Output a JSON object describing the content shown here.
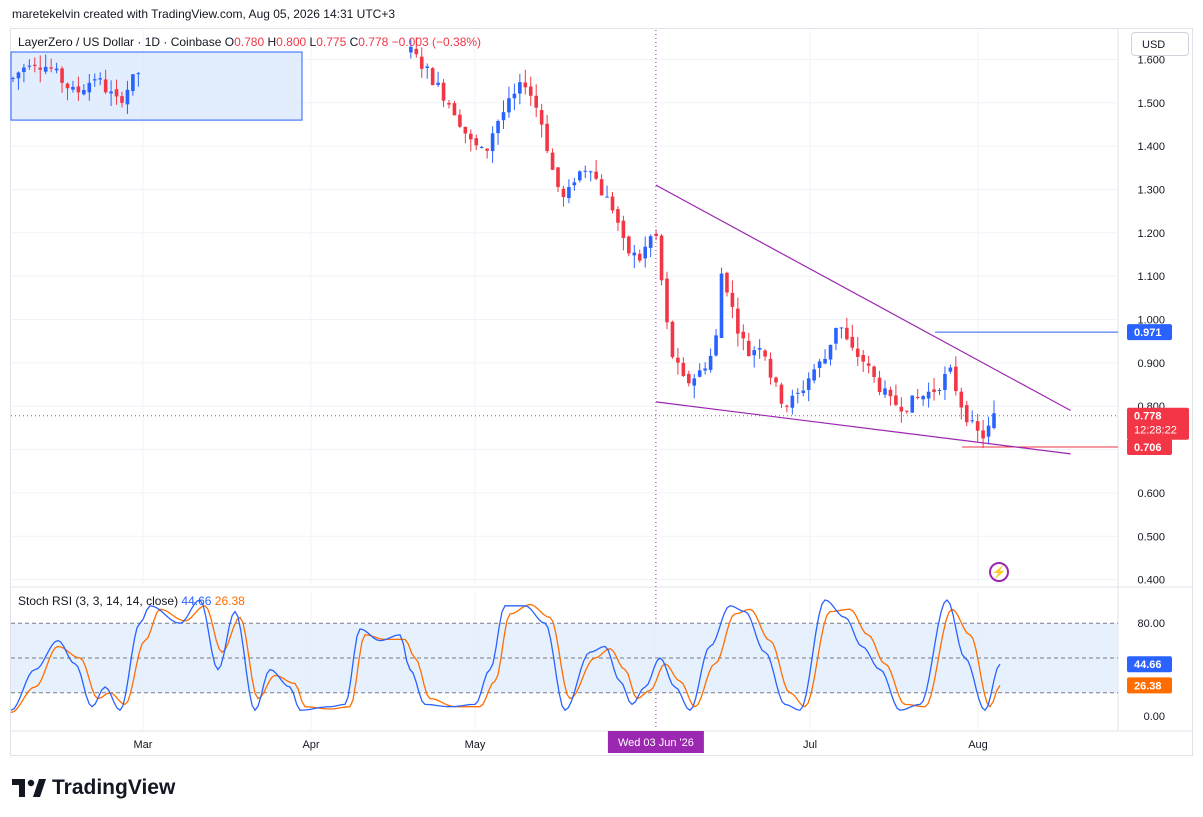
{
  "header": {
    "credit": "maretekelvin created with TradingView.com, Aug 05, 2026 14:31 UTC+3",
    "currency": "USD"
  },
  "legend": {
    "symbol": "LayerZero / US Dollar · 1D · Coinbase",
    "o_label": "O",
    "o": "0.780",
    "h_label": "H",
    "h": "0.800",
    "l_label": "L",
    "l": "0.775",
    "c_label": "C",
    "c": "0.778",
    "change": "−0.003 (−0.38%)"
  },
  "rsi_legend": {
    "name": "Stoch RSI (3, 3, 14, 14, close)",
    "k": "44.66",
    "d": "26.38"
  },
  "price_badges": {
    "level_high": "0.971",
    "current": "0.778",
    "countdown": "12:28:22",
    "level_low": "0.706"
  },
  "crosshair_label": "Wed 03 Jun '26",
  "brand": "TradingView",
  "colors": {
    "up": "#2962ff",
    "down": "#f23645",
    "trendline": "#9c27b0",
    "k_line": "#2962ff",
    "d_line": "#ff6d00",
    "band_fill": "#e3effd",
    "box_fill": "#dbe8fd",
    "box_border": "#2962ff"
  },
  "chart_data": [
    {
      "type": "candlestick",
      "title": "LayerZero / US Dollar · 1D · Coinbase",
      "xlabel": "",
      "ylabel": "",
      "x_ticks": [
        "Mar",
        "Apr",
        "May",
        "Jul",
        "Aug"
      ],
      "y_ticks": [
        "0.400",
        "0.500",
        "0.600",
        "0.700",
        "0.800",
        "0.900",
        "1.000",
        "1.100",
        "1.200",
        "1.300",
        "1.400",
        "1.500",
        "1.600"
      ],
      "ylim": [
        0.38,
        1.65
      ],
      "grid": true,
      "horizontal_lines": [
        0.971,
        0.706
      ],
      "last_price": 0.778,
      "trendlines": [
        {
          "from": [
            "2026-06-03",
            1.31
          ],
          "to": [
            "2026-08-18",
            0.79
          ]
        },
        {
          "from": [
            "2026-06-03",
            0.81
          ],
          "to": [
            "2026-08-18",
            0.69
          ]
        }
      ],
      "range_box": {
        "x_from": "2026-02-19",
        "x_to": "2026-03-23",
        "y_from": 1.46,
        "y_to": 1.62
      },
      "crosshair_x": "2026-06-03",
      "candles_note": "Approximate daily OHLC values read from chart",
      "candles": []
    },
    {
      "type": "line",
      "title": "Stoch RSI (3, 3, 14, 14, close)",
      "ylim": [
        0,
        100
      ],
      "y_ticks": [
        "0.00",
        "80.00"
      ],
      "bands": [
        20,
        80
      ],
      "series": [
        {
          "name": "",
          "last": 44.66
        },
        {
          "name": "",
          "last": 26.38
        }
      ]
    }
  ]
}
